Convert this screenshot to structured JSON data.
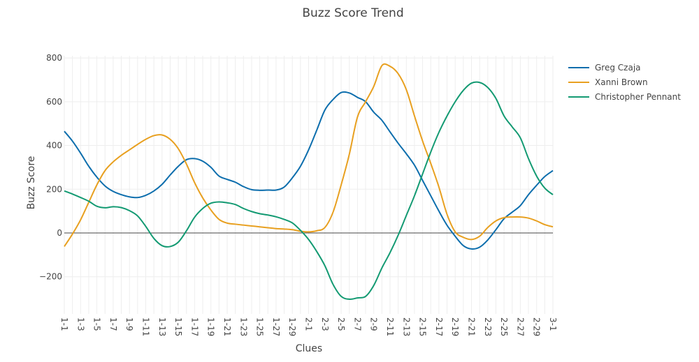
{
  "chart_data": {
    "type": "line",
    "title": "Buzz Score Trend",
    "xlabel": "Clues",
    "ylabel": "Buzz Score",
    "ylim": [
      -370,
      810
    ],
    "yticks": [
      -200,
      0,
      200,
      400,
      600,
      800
    ],
    "ytick_labels": [
      "−200",
      "0",
      "200",
      "400",
      "600",
      "800"
    ],
    "grid": true,
    "legend_position": "top-right",
    "categories": [
      "1-1",
      "1-2",
      "1-3",
      "1-4",
      "1-5",
      "1-6",
      "1-7",
      "1-8",
      "1-9",
      "1-10",
      "1-11",
      "1-12",
      "1-13",
      "1-14",
      "1-15",
      "1-16",
      "1-17",
      "1-18",
      "1-19",
      "1-20",
      "1-21",
      "1-22",
      "1-23",
      "1-24",
      "1-25",
      "1-26",
      "1-27",
      "1-28",
      "1-29",
      "1-30",
      "2-1",
      "2-2",
      "2-3",
      "2-4",
      "2-5",
      "2-6",
      "2-7",
      "2-8",
      "2-9",
      "2-10",
      "2-11",
      "2-12",
      "2-13",
      "2-14",
      "2-15",
      "2-16",
      "2-17",
      "2-18",
      "2-19",
      "2-20",
      "2-21",
      "2-22",
      "2-23",
      "2-24",
      "2-25",
      "2-26",
      "2-27",
      "2-28",
      "2-29",
      "2-30",
      "3-1"
    ],
    "tick_labels": [
      "1-1",
      "1-3",
      "1-5",
      "1-7",
      "1-9",
      "1-11",
      "1-13",
      "1-15",
      "1-17",
      "1-19",
      "1-21",
      "1-23",
      "1-25",
      "1-27",
      "1-29",
      "2-1",
      "2-3",
      "2-5",
      "2-7",
      "2-9",
      "2-11",
      "2-13",
      "2-15",
      "2-17",
      "2-19",
      "2-21",
      "2-23",
      "2-25",
      "2-27",
      "2-29",
      "3-1"
    ],
    "series": [
      {
        "name": "Greg Czaja",
        "color": "#0d6ead",
        "values": [
          465,
          420,
          365,
          305,
          255,
          215,
          190,
          175,
          165,
          162,
          172,
          192,
          222,
          265,
          305,
          335,
          340,
          328,
          300,
          260,
          245,
          232,
          212,
          198,
          195,
          196,
          196,
          210,
          252,
          305,
          380,
          470,
          562,
          610,
          642,
          640,
          620,
          600,
          552,
          515,
          462,
          410,
          362,
          310,
          240,
          170,
          100,
          35,
          -15,
          -58,
          -73,
          -65,
          -32,
          15,
          65,
          95,
          125,
          175,
          218,
          258,
          285
        ]
      },
      {
        "name": "Xanni Brown",
        "color": "#e8a020",
        "values": [
          -62,
          -5,
          60,
          140,
          220,
          285,
          325,
          355,
          380,
          405,
          428,
          445,
          448,
          428,
          385,
          315,
          230,
          160,
          105,
          62,
          45,
          40,
          36,
          32,
          28,
          24,
          20,
          18,
          15,
          8,
          5,
          10,
          25,
          95,
          220,
          360,
          530,
          600,
          670,
          765,
          762,
          728,
          655,
          535,
          420,
          318,
          210,
          85,
          5,
          -20,
          -30,
          -15,
          25,
          55,
          70,
          73,
          73,
          68,
          55,
          38,
          28
        ]
      },
      {
        "name": "Christopher Pennant",
        "color": "#139a72",
        "values": [
          192,
          178,
          162,
          145,
          122,
          115,
          120,
          116,
          102,
          78,
          30,
          -25,
          -58,
          -62,
          -42,
          10,
          72,
          112,
          136,
          142,
          138,
          130,
          112,
          98,
          88,
          82,
          74,
          62,
          46,
          12,
          -30,
          -85,
          -150,
          -235,
          -290,
          -303,
          -297,
          -290,
          -240,
          -160,
          -90,
          -10,
          80,
          170,
          270,
          370,
          460,
          535,
          600,
          652,
          685,
          688,
          665,
          615,
          535,
          485,
          435,
          340,
          260,
          205,
          175
        ]
      }
    ]
  }
}
